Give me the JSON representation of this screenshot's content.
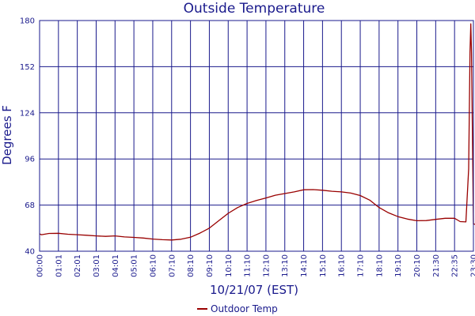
{
  "chart_data": {
    "type": "line",
    "title": "Outside Temperature",
    "ylabel": "Degrees F",
    "xlabel": "10/21/07 (EST)",
    "ylim": [
      40,
      180
    ],
    "yticks": [
      40,
      68,
      96,
      124,
      152,
      180
    ],
    "xticks": [
      "00:00",
      "01:01",
      "02:01",
      "03:01",
      "04:01",
      "05:01",
      "06:10",
      "07:10",
      "08:10",
      "09:10",
      "10:10",
      "11:10",
      "12:10",
      "13:10",
      "14:10",
      "15:10",
      "16:10",
      "17:10",
      "18:10",
      "19:10",
      "20:10",
      "21:30",
      "22:35",
      "23:30"
    ],
    "grid": true,
    "legend": "bottom-center",
    "series": [
      {
        "name": "Outdoor Temp",
        "color": "#990000",
        "points": [
          [
            0.0,
            50.5
          ],
          [
            0.1,
            50.0
          ],
          [
            0.5,
            50.8
          ],
          [
            1.0,
            50.9
          ],
          [
            1.5,
            50.3
          ],
          [
            2.0,
            50.0
          ],
          [
            2.5,
            49.7
          ],
          [
            3.0,
            49.3
          ],
          [
            3.5,
            49.0
          ],
          [
            4.0,
            49.3
          ],
          [
            4.5,
            48.7
          ],
          [
            5.0,
            48.4
          ],
          [
            5.5,
            48.0
          ],
          [
            6.0,
            47.4
          ],
          [
            6.5,
            47.0
          ],
          [
            7.0,
            46.8
          ],
          [
            7.5,
            47.3
          ],
          [
            8.0,
            48.5
          ],
          [
            8.5,
            51.0
          ],
          [
            9.0,
            54.0
          ],
          [
            9.5,
            58.5
          ],
          [
            10.0,
            63.0
          ],
          [
            10.5,
            66.5
          ],
          [
            11.0,
            69.0
          ],
          [
            11.5,
            70.8
          ],
          [
            12.0,
            72.3
          ],
          [
            12.5,
            74.0
          ],
          [
            13.0,
            75.0
          ],
          [
            13.5,
            76.0
          ],
          [
            14.0,
            77.3
          ],
          [
            14.5,
            77.4
          ],
          [
            15.0,
            77.0
          ],
          [
            15.5,
            76.4
          ],
          [
            16.0,
            76.0
          ],
          [
            16.5,
            75.3
          ],
          [
            17.0,
            73.8
          ],
          [
            17.5,
            71.0
          ],
          [
            18.0,
            66.5
          ],
          [
            18.5,
            63.3
          ],
          [
            19.0,
            61.0
          ],
          [
            19.5,
            59.5
          ],
          [
            20.0,
            58.5
          ],
          [
            20.5,
            58.6
          ],
          [
            21.0,
            59.3
          ],
          [
            21.5,
            60.0
          ],
          [
            22.0,
            60.0
          ],
          [
            22.3,
            58.0
          ],
          [
            22.6,
            57.8
          ],
          [
            22.75,
            90.0
          ],
          [
            22.82,
            161.0
          ],
          [
            22.86,
            178.0
          ],
          [
            22.9,
            160.0
          ],
          [
            23.0,
            56.5
          ],
          [
            23.25,
            56.2
          ],
          [
            23.5,
            55.5
          ]
        ]
      }
    ]
  }
}
